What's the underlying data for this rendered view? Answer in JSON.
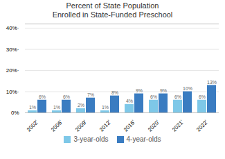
{
  "chart_data": {
    "type": "bar",
    "title": "Percent of State Population\nEnrolled in State-Funded Preschool",
    "categories": [
      "2002ʼ",
      "2006ʼ",
      "2009ʼ",
      "2012ʼ",
      "2016ʼ",
      "2020ʼ",
      "2021ʼ",
      "2022ʼ"
    ],
    "series": [
      {
        "name": "3-year-olds",
        "color": "#7ec8e8",
        "values": [
          1,
          1,
          2,
          1,
          4,
          6,
          6,
          6
        ],
        "value_labels": [
          "1%",
          "1%",
          "2%",
          "1%",
          "4%",
          "6%",
          "6%",
          "6%"
        ]
      },
      {
        "name": "4-year-olds",
        "color": "#3a7cc1",
        "values": [
          6,
          6,
          7,
          8,
          9,
          9,
          10,
          13
        ],
        "value_labels": [
          "6%",
          "6%",
          "7%",
          "8%",
          "9%",
          "9%",
          "10%",
          "13%"
        ]
      }
    ],
    "ylim": [
      0,
      42
    ],
    "yticks": [
      {
        "value": 0,
        "label": "0%"
      },
      {
        "value": 10,
        "label": "10%·"
      },
      {
        "value": 20,
        "label": "20%·"
      },
      {
        "value": 30,
        "label": "30%·"
      },
      {
        "value": 40,
        "label": "40%·"
      }
    ],
    "grid": true,
    "data_labels": true,
    "legend": "lower center"
  }
}
